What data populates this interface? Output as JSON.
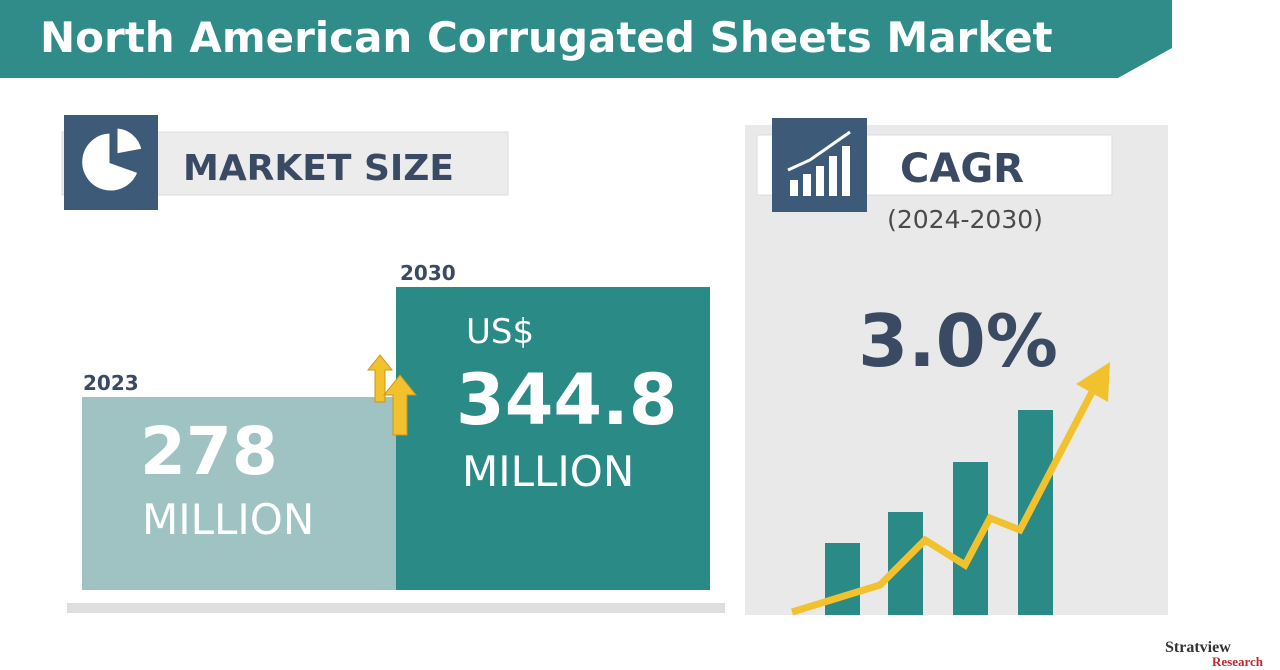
{
  "header": {
    "title": "North American Corrugated Sheets Market"
  },
  "market_size": {
    "label": "MARKET SIZE",
    "items": [
      {
        "year": "2023",
        "value": "278",
        "unit": "MILLION"
      },
      {
        "year": "2030",
        "currency": "US$",
        "value": "344.8",
        "unit": "MILLION"
      }
    ]
  },
  "cagr": {
    "label": "CAGR",
    "period": "(2024-2030)",
    "value": "3.0%"
  },
  "logo": {
    "name": "Stratview",
    "sub": "Research"
  }
}
